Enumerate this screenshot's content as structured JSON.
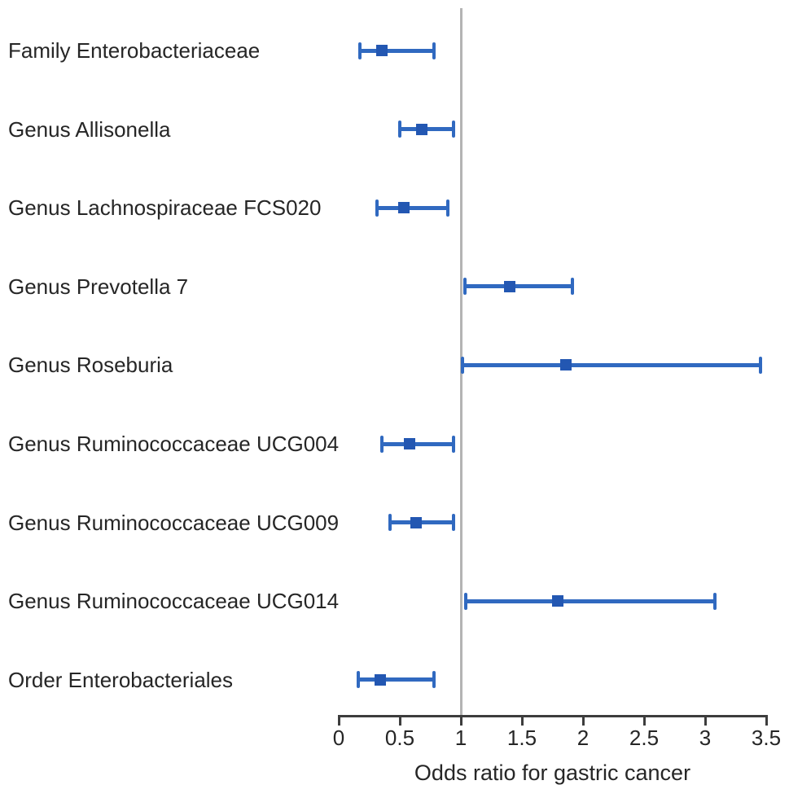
{
  "figure": {
    "background": "#ffffff"
  },
  "chart_data": {
    "type": "scatter",
    "subtype": "forest-plot",
    "title": "",
    "xlabel": "Odds ratio for gastric cancer",
    "ylabel": "",
    "xlim": [
      0,
      3.5
    ],
    "xticks": [
      0,
      0.5,
      1,
      1.5,
      2,
      2.5,
      3,
      3.5
    ],
    "xtick_labels": [
      "0",
      "0.5",
      "1",
      "1.5",
      "2",
      "2.5",
      "3",
      "3.5"
    ],
    "reference_line_x": 1,
    "grid": false,
    "legend": null,
    "rows": [
      {
        "label": "Family Enterobacteriaceae",
        "or": 0.35,
        "ci_low": 0.17,
        "ci_high": 0.78
      },
      {
        "label": "Genus Allisonella",
        "or": 0.68,
        "ci_low": 0.5,
        "ci_high": 0.94
      },
      {
        "label": "Genus Lachnospiraceae FCS020",
        "or": 0.53,
        "ci_low": 0.31,
        "ci_high": 0.89
      },
      {
        "label": "Genus Prevotella 7",
        "or": 1.4,
        "ci_low": 1.03,
        "ci_high": 1.91
      },
      {
        "label": "Genus Roseburia",
        "or": 1.86,
        "ci_low": 1.01,
        "ci_high": 3.45
      },
      {
        "label": "Genus Ruminococcaceae UCG004",
        "or": 0.58,
        "ci_low": 0.35,
        "ci_high": 0.94
      },
      {
        "label": "Genus Ruminococcaceae UCG009",
        "or": 0.63,
        "ci_low": 0.42,
        "ci_high": 0.94
      },
      {
        "label": "Genus Ruminococcaceae UCG014",
        "or": 1.79,
        "ci_low": 1.04,
        "ci_high": 3.08
      },
      {
        "label": "Order Enterobacteriales",
        "or": 0.34,
        "ci_low": 0.16,
        "ci_high": 0.78
      }
    ],
    "colors": {
      "ci_line": "#3069c0",
      "marker": "#2357b2",
      "reference_line": "#b4b4b4",
      "axis": "#3d3d3d",
      "text": "#262626"
    }
  }
}
